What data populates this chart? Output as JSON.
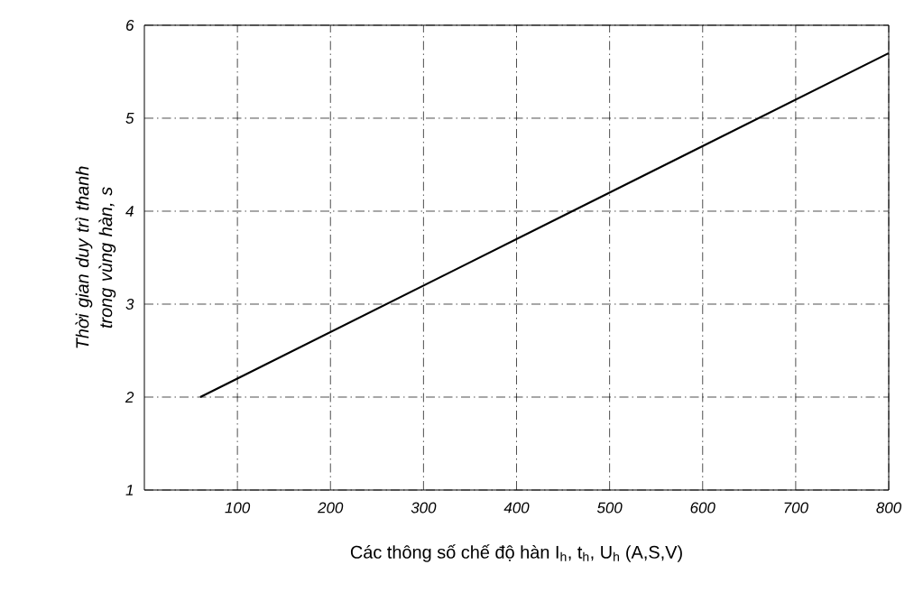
{
  "chart_data": {
    "type": "line",
    "xlabel": "Các thông số chế độ hàn I$_{h}$, t$_{h}$, U$_{h}$ (A,S,V)",
    "ylabel": "Thời gian duy trì thanh trong vùng hàn, s",
    "x": [
      60,
      800
    ],
    "series": [
      {
        "color": "#000000",
        "values": [
          2.0,
          5.7
        ]
      }
    ],
    "xlim": [
      0,
      800
    ],
    "ylim": [
      1,
      6
    ],
    "xticks": [
      100,
      200,
      300,
      400,
      500,
      600,
      700,
      800
    ],
    "yticks": [
      1,
      2,
      3,
      4,
      5,
      6
    ],
    "grid": true,
    "line_style": "solid",
    "marker": "none"
  }
}
